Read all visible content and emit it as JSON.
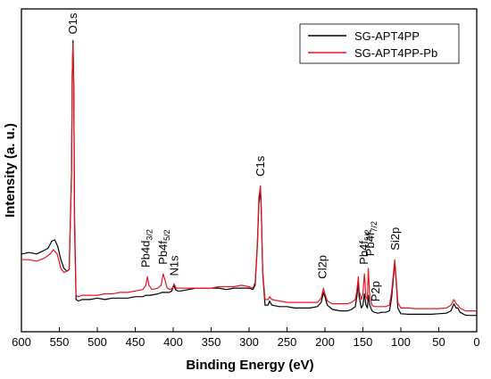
{
  "chart_data": {
    "type": "line",
    "xlabel": "Binding Energy (eV)",
    "ylabel": "Intensity (a. u.)",
    "xlim": [
      600,
      0
    ],
    "x_reversed": true,
    "xticks": [
      600,
      550,
      500,
      450,
      400,
      350,
      300,
      250,
      200,
      150,
      100,
      50,
      0
    ],
    "y_ticks_shown": false,
    "grid": false,
    "legend_position": "top-right",
    "series": [
      {
        "name": "SG-APT4PP",
        "color": "#000000",
        "points": [
          [
            600,
            0.22
          ],
          [
            590,
            0.225
          ],
          [
            580,
            0.22
          ],
          [
            572,
            0.23
          ],
          [
            565,
            0.24
          ],
          [
            560,
            0.265
          ],
          [
            556,
            0.27
          ],
          [
            552,
            0.245
          ],
          [
            548,
            0.2
          ],
          [
            544,
            0.17
          ],
          [
            540,
            0.16
          ],
          [
            537,
            0.165
          ],
          [
            534,
            0.5
          ],
          [
            533,
            0.85
          ],
          [
            532,
            0.97
          ],
          [
            531,
            0.8
          ],
          [
            530,
            0.35
          ],
          [
            528,
            0.06
          ],
          [
            525,
            0.055
          ],
          [
            520,
            0.06
          ],
          [
            510,
            0.06
          ],
          [
            500,
            0.065
          ],
          [
            490,
            0.06
          ],
          [
            480,
            0.065
          ],
          [
            470,
            0.065
          ],
          [
            460,
            0.065
          ],
          [
            450,
            0.07
          ],
          [
            440,
            0.07
          ],
          [
            436,
            0.075
          ],
          [
            430,
            0.075
          ],
          [
            420,
            0.08
          ],
          [
            415,
            0.085
          ],
          [
            410,
            0.085
          ],
          [
            405,
            0.085
          ],
          [
            402,
            0.09
          ],
          [
            399,
            0.11
          ],
          [
            397,
            0.095
          ],
          [
            394,
            0.09
          ],
          [
            390,
            0.09
          ],
          [
            380,
            0.095
          ],
          [
            370,
            0.1
          ],
          [
            360,
            0.1
          ],
          [
            350,
            0.1
          ],
          [
            340,
            0.1
          ],
          [
            330,
            0.095
          ],
          [
            320,
            0.1
          ],
          [
            310,
            0.1
          ],
          [
            300,
            0.1
          ],
          [
            295,
            0.095
          ],
          [
            292,
            0.11
          ],
          [
            289,
            0.25
          ],
          [
            287,
            0.4
          ],
          [
            285,
            0.44
          ],
          [
            284,
            0.38
          ],
          [
            282,
            0.15
          ],
          [
            279,
            0.04
          ],
          [
            275,
            0.04
          ],
          [
            273,
            0.055
          ],
          [
            270,
            0.04
          ],
          [
            260,
            0.035
          ],
          [
            250,
            0.035
          ],
          [
            240,
            0.03
          ],
          [
            230,
            0.03
          ],
          [
            220,
            0.03
          ],
          [
            210,
            0.035
          ],
          [
            205,
            0.05
          ],
          [
            202,
            0.085
          ],
          [
            200,
            0.07
          ],
          [
            197,
            0.04
          ],
          [
            190,
            0.025
          ],
          [
            180,
            0.02
          ],
          [
            170,
            0.02
          ],
          [
            165,
            0.025
          ],
          [
            160,
            0.035
          ],
          [
            158,
            0.07
          ],
          [
            156,
            0.12
          ],
          [
            155,
            0.07
          ],
          [
            152,
            0.03
          ],
          [
            150,
            0.04
          ],
          [
            148,
            0.08
          ],
          [
            146,
            0.04
          ],
          [
            144,
            0.03
          ],
          [
            143,
            0.075
          ],
          [
            141,
            0.04
          ],
          [
            138,
            0.02
          ],
          [
            135,
            0.015
          ],
          [
            130,
            0.012
          ],
          [
            125,
            0.015
          ],
          [
            120,
            0.015
          ],
          [
            115,
            0.02
          ],
          [
            112,
            0.07
          ],
          [
            108,
            0.19
          ],
          [
            106,
            0.12
          ],
          [
            104,
            0.03
          ],
          [
            100,
            0.01
          ],
          [
            90,
            0.008
          ],
          [
            80,
            0.008
          ],
          [
            70,
            0.008
          ],
          [
            60,
            0.008
          ],
          [
            50,
            0.01
          ],
          [
            40,
            0.012
          ],
          [
            34,
            0.02
          ],
          [
            30,
            0.045
          ],
          [
            27,
            0.03
          ],
          [
            25,
            0.03
          ],
          [
            22,
            0.015
          ],
          [
            15,
            0.005
          ],
          [
            10,
            0.004
          ],
          [
            5,
            0.004
          ],
          [
            0,
            0.004
          ]
        ]
      },
      {
        "name": "SG-APT4PP-Pb",
        "color": "#e8141e",
        "points": [
          [
            600,
            0.2
          ],
          [
            590,
            0.2
          ],
          [
            580,
            0.195
          ],
          [
            570,
            0.205
          ],
          [
            562,
            0.22
          ],
          [
            558,
            0.235
          ],
          [
            553,
            0.22
          ],
          [
            548,
            0.17
          ],
          [
            544,
            0.155
          ],
          [
            540,
            0.16
          ],
          [
            537,
            0.165
          ],
          [
            534,
            0.5
          ],
          [
            533,
            0.85
          ],
          [
            532,
            0.96
          ],
          [
            531,
            0.78
          ],
          [
            530,
            0.3
          ],
          [
            528,
            0.075
          ],
          [
            525,
            0.07
          ],
          [
            520,
            0.075
          ],
          [
            510,
            0.075
          ],
          [
            500,
            0.075
          ],
          [
            490,
            0.08
          ],
          [
            480,
            0.08
          ],
          [
            470,
            0.085
          ],
          [
            460,
            0.085
          ],
          [
            450,
            0.09
          ],
          [
            440,
            0.095
          ],
          [
            436,
            0.11
          ],
          [
            434,
            0.14
          ],
          [
            432,
            0.11
          ],
          [
            428,
            0.095
          ],
          [
            420,
            0.1
          ],
          [
            416,
            0.11
          ],
          [
            413,
            0.15
          ],
          [
            411,
            0.13
          ],
          [
            408,
            0.1
          ],
          [
            404,
            0.095
          ],
          [
            401,
            0.1
          ],
          [
            399,
            0.115
          ],
          [
            396,
            0.1
          ],
          [
            390,
            0.1
          ],
          [
            380,
            0.1
          ],
          [
            370,
            0.1
          ],
          [
            360,
            0.1
          ],
          [
            350,
            0.1
          ],
          [
            340,
            0.105
          ],
          [
            330,
            0.105
          ],
          [
            320,
            0.105
          ],
          [
            310,
            0.11
          ],
          [
            300,
            0.105
          ],
          [
            295,
            0.1
          ],
          [
            292,
            0.12
          ],
          [
            289,
            0.26
          ],
          [
            287,
            0.42
          ],
          [
            285,
            0.46
          ],
          [
            284,
            0.39
          ],
          [
            282,
            0.16
          ],
          [
            279,
            0.06
          ],
          [
            275,
            0.06
          ],
          [
            273,
            0.07
          ],
          [
            270,
            0.06
          ],
          [
            260,
            0.055
          ],
          [
            250,
            0.05
          ],
          [
            240,
            0.05
          ],
          [
            230,
            0.05
          ],
          [
            220,
            0.05
          ],
          [
            210,
            0.05
          ],
          [
            205,
            0.065
          ],
          [
            202,
            0.1
          ],
          [
            200,
            0.08
          ],
          [
            197,
            0.055
          ],
          [
            190,
            0.045
          ],
          [
            180,
            0.045
          ],
          [
            170,
            0.045
          ],
          [
            165,
            0.05
          ],
          [
            160,
            0.06
          ],
          [
            158,
            0.09
          ],
          [
            156,
            0.14
          ],
          [
            155,
            0.09
          ],
          [
            152,
            0.06
          ],
          [
            150,
            0.08
          ],
          [
            148,
            0.15
          ],
          [
            146,
            0.07
          ],
          [
            144,
            0.06
          ],
          [
            143,
            0.17
          ],
          [
            141,
            0.07
          ],
          [
            138,
            0.04
          ],
          [
            135,
            0.035
          ],
          [
            130,
            0.035
          ],
          [
            125,
            0.035
          ],
          [
            120,
            0.035
          ],
          [
            115,
            0.04
          ],
          [
            112,
            0.09
          ],
          [
            108,
            0.2
          ],
          [
            106,
            0.13
          ],
          [
            104,
            0.05
          ],
          [
            100,
            0.03
          ],
          [
            90,
            0.03
          ],
          [
            80,
            0.028
          ],
          [
            70,
            0.028
          ],
          [
            60,
            0.028
          ],
          [
            50,
            0.028
          ],
          [
            40,
            0.03
          ],
          [
            34,
            0.04
          ],
          [
            30,
            0.06
          ],
          [
            27,
            0.045
          ],
          [
            25,
            0.04
          ],
          [
            22,
            0.03
          ],
          [
            15,
            0.02
          ],
          [
            10,
            0.02
          ],
          [
            5,
            0.02
          ],
          [
            0,
            0.02
          ]
        ]
      }
    ],
    "annotations": [
      {
        "id": "o1s",
        "base": "O1s",
        "sub": "",
        "suffix": "",
        "x": 532,
        "y": 0.98,
        "rotated": true
      },
      {
        "id": "pb4d",
        "base": "Pb4d",
        "sub": "3/2",
        "suffix": "",
        "x": 436,
        "y": 0.16,
        "rotated": true
      },
      {
        "id": "pb4f-52-left",
        "base": "Pb4f",
        "sub": "5/2",
        "suffix": "",
        "x": 413,
        "y": 0.17,
        "rotated": true
      },
      {
        "id": "n1s",
        "base": "N1s",
        "sub": "",
        "suffix": "",
        "x": 398,
        "y": 0.13,
        "rotated": true
      },
      {
        "id": "c1s",
        "base": "C1s",
        "sub": "",
        "suffix": "",
        "x": 285,
        "y": 0.48,
        "rotated": true
      },
      {
        "id": "cl2p",
        "base": "Cl2p",
        "sub": "",
        "suffix": "",
        "x": 203,
        "y": 0.12,
        "rotated": true
      },
      {
        "id": "pb4f-52-right",
        "base": "Pb4f",
        "sub": "5/2",
        "suffix": "",
        "x": 148,
        "y": 0.17,
        "rotated": true
      },
      {
        "id": "pb4f-72",
        "base": "Pb4f",
        "sub": "7/2",
        "suffix": "",
        "x": 140,
        "y": 0.2,
        "rotated": true
      },
      {
        "id": "p2p",
        "base": "P2p",
        "sub": "",
        "suffix": "",
        "x": 133,
        "y": 0.04,
        "rotated": true
      },
      {
        "id": "si2p",
        "base": "Si2p",
        "sub": "",
        "suffix": "",
        "x": 107,
        "y": 0.22,
        "rotated": true
      }
    ]
  }
}
